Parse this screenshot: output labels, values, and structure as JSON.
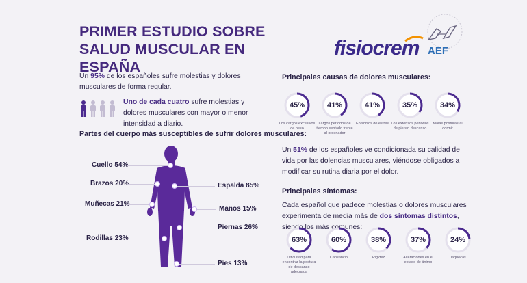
{
  "title": {
    "line1": "PRIMER ESTUDIO SOBRE",
    "line2": "SALUD MUSCULAR EN ESPAÑA"
  },
  "logos": {
    "brand": "fisiocrem",
    "partner": "AEF"
  },
  "intro": {
    "prefix": "Un ",
    "highlight": "95%",
    "suffix": " de los españoles sufre molestias y dolores musculares de forma regular."
  },
  "one_in_four": {
    "highlight": "Uno de cada cuatro",
    "rest": " sufre molestias y dolores musculares con mayor o menor intensidad a diario."
  },
  "body_section": {
    "heading": "Partes del cuerpo más susceptibles de sufrir dolores musculares:",
    "labels": [
      {
        "name": "Cuello",
        "value": "54%"
      },
      {
        "name": "Brazos",
        "value": "20%"
      },
      {
        "name": "Muñecas",
        "value": "21%"
      },
      {
        "name": "Rodillas",
        "value": "23%"
      },
      {
        "name": "Espalda",
        "value": "85%"
      },
      {
        "name": "Manos",
        "value": "15%"
      },
      {
        "name": "Piernas",
        "value": "26%"
      },
      {
        "name": "Pies",
        "value": "13%"
      }
    ]
  },
  "causes": {
    "heading": "Principales causas de dolores musculares:",
    "items": [
      {
        "value": 45,
        "label": "45%",
        "caption": "Los cargos excesivos de peso"
      },
      {
        "value": 41,
        "label": "41%",
        "caption": "Largos periodos de tiempo sentado frente al ordenador"
      },
      {
        "value": 41,
        "label": "41%",
        "caption": "Episodios de estrés"
      },
      {
        "value": 35,
        "label": "35%",
        "caption": "Los extensos periodos de pie sin descanso"
      },
      {
        "value": 34,
        "label": "34%",
        "caption": "Malas posturas al dormir"
      }
    ]
  },
  "quality": {
    "prefix": "Un ",
    "highlight": "51%",
    "suffix": " de los españoles ve condicionada su calidad de vida por las dolencias musculares, viéndose obligados a modificar su rutina diaria por el dolor."
  },
  "symptoms": {
    "heading": "Principales síntomas:",
    "text_prefix": "Cada español que padece molestias o dolores musculares experimenta de media más de ",
    "text_highlight": "dos síntomas distintos",
    "text_suffix": ", siendo los más comunes:",
    "items": [
      {
        "value": 63,
        "label": "63%",
        "caption": "Dificultad para encontrar la postura de descanso adecuada"
      },
      {
        "value": 60,
        "label": "60%",
        "caption": "Cansancio"
      },
      {
        "value": 38,
        "label": "38%",
        "caption": "Rigidez"
      },
      {
        "value": 37,
        "label": "37%",
        "caption": "Alteraciones en el estado de ánimo"
      },
      {
        "value": 24,
        "label": "24%",
        "caption": "Jaquecas"
      }
    ]
  },
  "colors": {
    "primary": "#45297d",
    "ring": "#4b2a8f",
    "ring_track": "#e4e0ec",
    "figure": "#5a2a9a"
  }
}
